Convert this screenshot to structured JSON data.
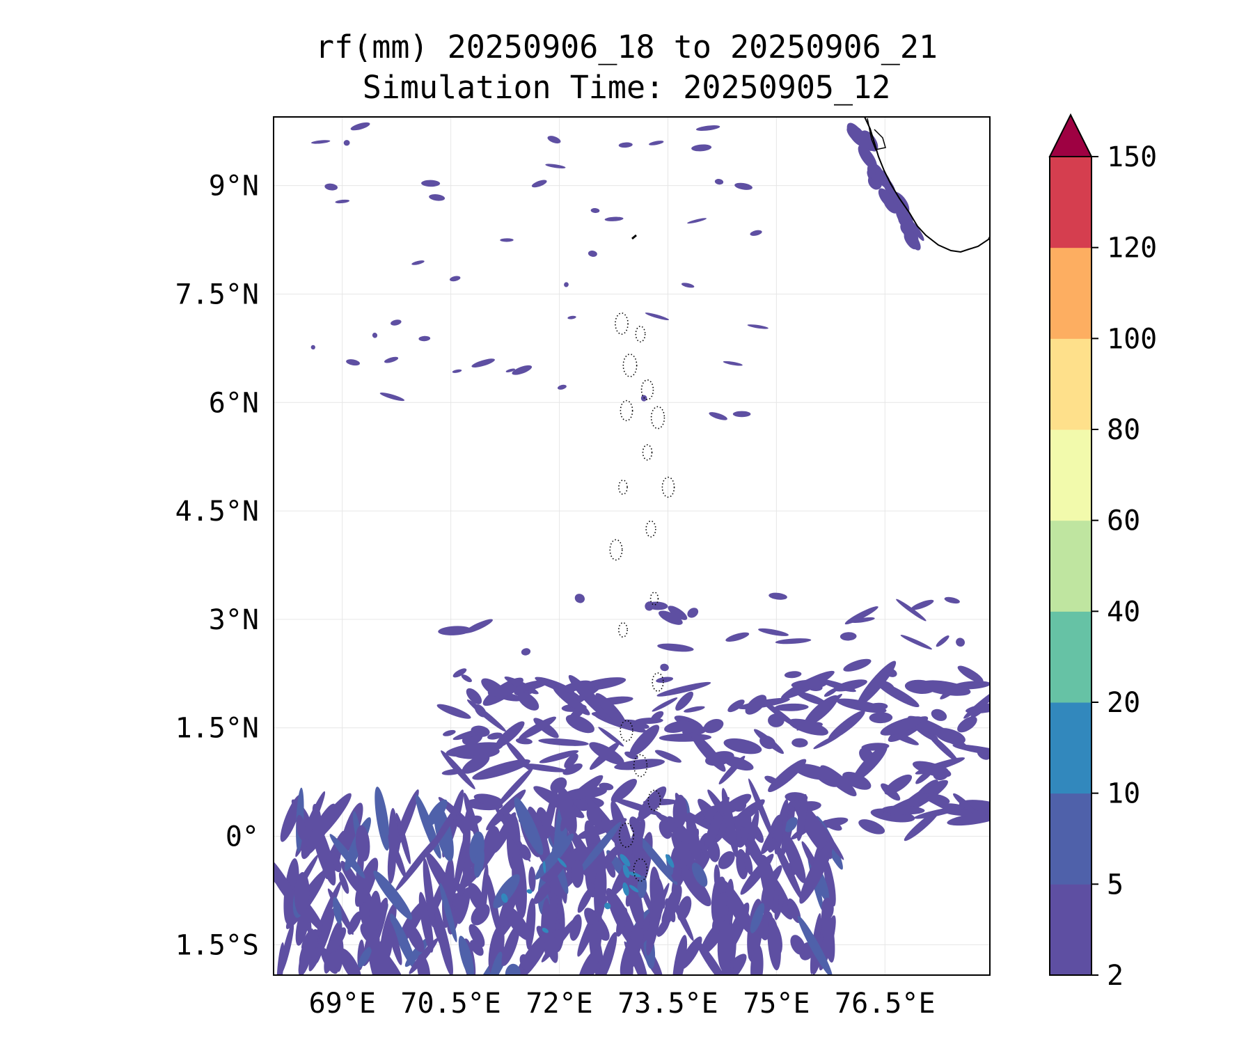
{
  "title": {
    "line1": "rf(mm) 20250906_18 to 20250906_21",
    "line2": "Simulation Time: 20250905_12"
  },
  "map": {
    "lon_ticks": [
      "69°E",
      "70.5°E",
      "72°E",
      "73.5°E",
      "75°E",
      "76.5°E"
    ],
    "lon_values": [
      69,
      70.5,
      72,
      73.5,
      75,
      76.5
    ],
    "lat_ticks": [
      "9°N",
      "7.5°N",
      "6°N",
      "4.5°N",
      "3°N",
      "1.5°N",
      "0°",
      "1.5°S"
    ],
    "lat_values": [
      9,
      7.5,
      6,
      4.5,
      3,
      1.5,
      0,
      -1.5
    ],
    "extent": {
      "lon": [
        68.05,
        77.95
      ],
      "lat": [
        -1.92,
        9.95
      ]
    },
    "gridlines": true,
    "variable": "rf(mm)",
    "coastline_features": [
      "India (Kerala) coast",
      "Lakshadweep islands",
      "Maldives atolls"
    ]
  },
  "colorbar": {
    "levels": [
      "2",
      "5",
      "10",
      "20",
      "40",
      "60",
      "80",
      "100",
      "120",
      "150"
    ],
    "colors": [
      "#5e4fa2",
      "#4f61aa",
      "#3288bd",
      "#66c2a5",
      "#bfe5a0",
      "#f2faac",
      "#fee08b",
      "#fdae61",
      "#d53e4f"
    ],
    "extend_color": "#9e0142",
    "extend": "max"
  },
  "colors": {
    "rain_low": "#5e4fa2",
    "rain_mid": "#4f61aa",
    "rain_high": "#3288bd",
    "coast": "#000000",
    "grid": "#e6e6e6"
  }
}
